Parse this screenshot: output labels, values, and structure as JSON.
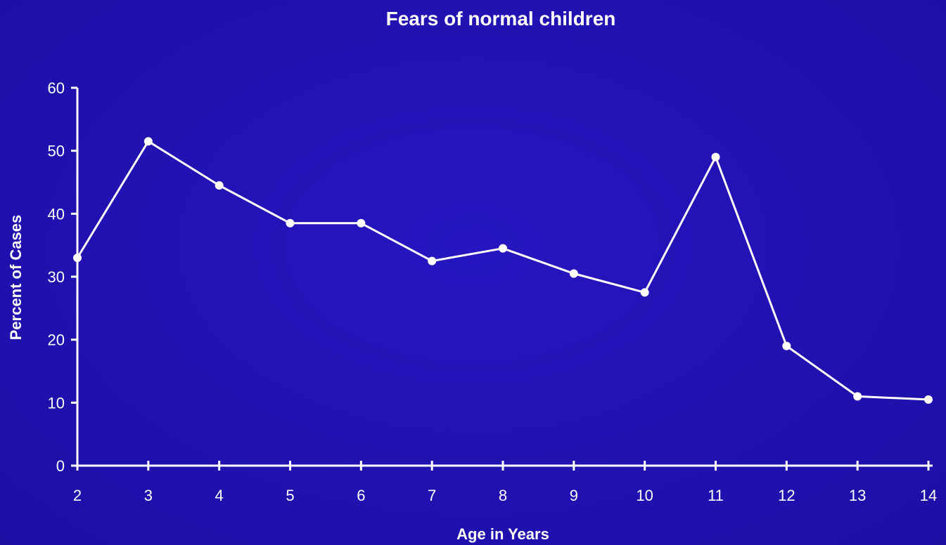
{
  "chart_data": {
    "type": "line",
    "title": "Fears of normal children",
    "xlabel": "Age in Years",
    "ylabel": "Percent of Cases",
    "x": [
      2,
      3,
      4,
      5,
      6,
      7,
      8,
      9,
      10,
      11,
      12,
      13,
      14
    ],
    "series": [
      {
        "values": [
          33,
          51.5,
          44.5,
          38.5,
          38.5,
          32.5,
          34.5,
          30.5,
          27.5,
          49,
          19,
          11,
          10.5
        ]
      }
    ],
    "xlim": [
      2,
      14
    ],
    "ylim": [
      0,
      60
    ],
    "yticks": [
      0,
      10,
      20,
      30,
      40,
      50,
      60
    ],
    "xticks": [
      2,
      3,
      4,
      5,
      6,
      7,
      8,
      9,
      10,
      11,
      12,
      13,
      14
    ],
    "grid": false,
    "colors": {
      "background": "#2313b4",
      "line": "#ffffff",
      "marker": "#ffffff"
    }
  }
}
